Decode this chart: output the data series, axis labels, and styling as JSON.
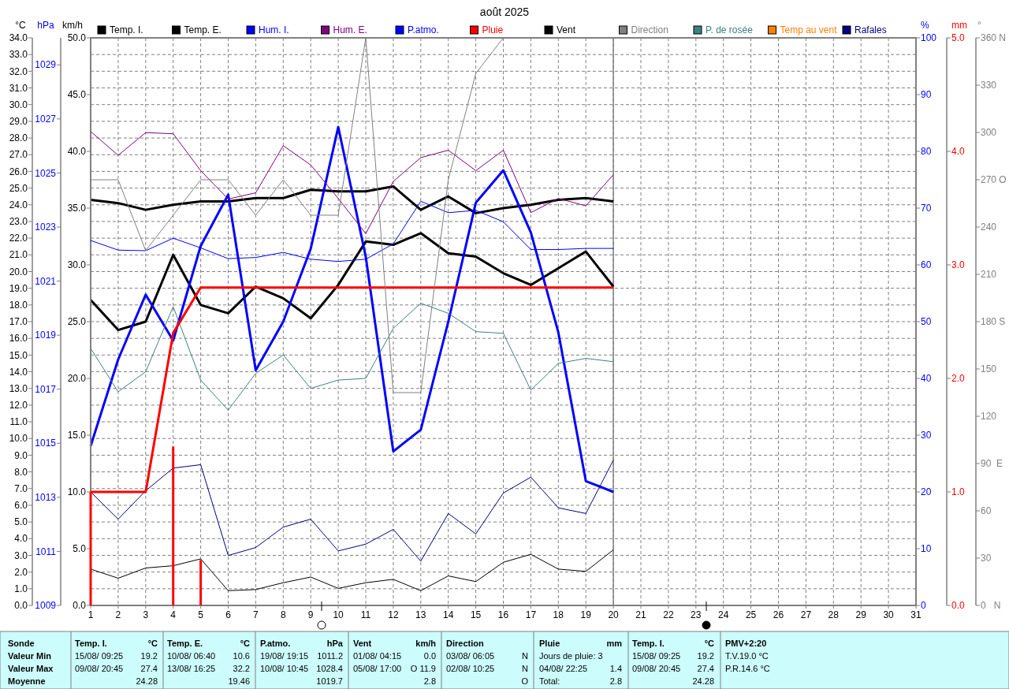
{
  "chart_data": [
    {
      "type": "line",
      "title": "août 2025",
      "ylabel": "°C",
      "y2label": "hPa",
      "y3label": "km/h",
      "x": [
        1,
        2,
        3,
        4,
        5,
        6,
        7,
        8,
        9,
        10,
        11,
        12,
        13,
        14,
        15,
        16,
        17,
        18,
        19,
        20
      ],
      "xlim": [
        1,
        31
      ],
      "xticks": [
        1,
        2,
        3,
        4,
        5,
        6,
        7,
        8,
        9,
        10,
        11,
        12,
        13,
        14,
        15,
        16,
        17,
        18,
        19,
        20,
        21,
        22,
        23,
        24,
        25,
        26,
        27,
        28,
        29,
        30,
        31
      ],
      "ylim": [
        0,
        34
      ],
      "yticks": [
        {
          "value": 0,
          "label": "0.0"
        },
        {
          "value": 1,
          "label": "1.0"
        },
        {
          "value": 2,
          "label": "2.0"
        },
        {
          "value": 3,
          "label": "3.0"
        },
        {
          "value": 4,
          "label": "4.0"
        },
        {
          "value": 5,
          "label": "5.0"
        },
        {
          "value": 6,
          "label": "6.0"
        },
        {
          "value": 7,
          "label": "7.0"
        },
        {
          "value": 8,
          "label": "8.0"
        },
        {
          "value": 9,
          "label": "9.0"
        },
        {
          "value": 10,
          "label": "10.0"
        },
        {
          "value": 11,
          "label": "11.0"
        },
        {
          "value": 12,
          "label": "12.0"
        },
        {
          "value": 13,
          "label": "13.0"
        },
        {
          "value": 14,
          "label": "14.0"
        },
        {
          "value": 15,
          "label": "15.0"
        },
        {
          "value": 16,
          "label": "16.0"
        },
        {
          "value": 17,
          "label": "17.0"
        },
        {
          "value": 18,
          "label": "18.0"
        },
        {
          "value": 19,
          "label": "19.0"
        },
        {
          "value": 20,
          "label": "20.0"
        },
        {
          "value": 21,
          "label": "21.0"
        },
        {
          "value": 22,
          "label": "22.0"
        },
        {
          "value": 23,
          "label": "23.0"
        },
        {
          "value": 24,
          "label": "24.0"
        },
        {
          "value": 25,
          "label": "25.0"
        },
        {
          "value": 26,
          "label": "26.0"
        },
        {
          "value": 27,
          "label": "27.0"
        },
        {
          "value": 28,
          "label": "28.0"
        },
        {
          "value": 29,
          "label": "29.0"
        },
        {
          "value": 30,
          "label": "30.0"
        },
        {
          "value": 31,
          "label": "31.0"
        },
        {
          "value": 32,
          "label": "32.0"
        },
        {
          "value": 33,
          "label": "33.0"
        },
        {
          "value": 34,
          "label": "34.0"
        }
      ],
      "y2lim": [
        1009,
        1030
      ],
      "y2ticks": [
        1009,
        1011,
        1013,
        1015,
        1017,
        1019,
        1021,
        1023,
        1025,
        1027,
        1029
      ],
      "y3lim": [
        0,
        50
      ],
      "y3ticks": [
        {
          "value": 0,
          "label": "0.0"
        },
        {
          "value": 5,
          "label": "5.0"
        },
        {
          "value": 10,
          "label": "10.0"
        },
        {
          "value": 15,
          "label": "15.0"
        },
        {
          "value": 20,
          "label": "20.0"
        },
        {
          "value": 25,
          "label": "25.0"
        },
        {
          "value": 30,
          "label": "30.0"
        },
        {
          "value": 35,
          "label": "35.0"
        },
        {
          "value": 40,
          "label": "40.0"
        },
        {
          "value": 45,
          "label": "45.0"
        },
        {
          "value": 50,
          "label": "50.0"
        }
      ],
      "grid": true,
      "legend": "top",
      "ref_lines": [
        {
          "axis": "x",
          "value": 20,
          "color": "#808080"
        }
      ],
      "series": [
        {
          "name": "Temp. I.",
          "color": "#000000",
          "values": [
            24.3,
            24.1,
            23.7,
            24.0,
            24.2,
            24.2,
            24.4,
            24.4,
            24.9,
            24.8,
            24.8,
            25.1,
            23.7,
            24.5,
            23.5,
            23.8,
            24.0,
            24.3,
            24.4,
            24.2
          ]
        },
        {
          "name": "Temp. E.",
          "color": "#000000",
          "values": [
            18.3,
            16.5,
            17.0,
            21.0,
            18.0,
            17.5,
            19.1,
            18.4,
            17.2,
            19.2,
            21.8,
            21.6,
            22.3,
            21.1,
            20.9,
            19.9,
            19.2,
            20.2,
            21.2,
            19.1
          ]
        },
        {
          "name": "P.atmo.",
          "color": "#0000ff",
          "axis": "y2",
          "values": [
            1014.9,
            1018.1,
            1020.5,
            1018.8,
            1022.3,
            1024.2,
            1017.7,
            1019.5,
            1022.2,
            1026.7,
            1021.9,
            1014.7,
            1015.5,
            1019.5,
            1023.9,
            1025.1,
            1022.8,
            1019.1,
            1013.6,
            1013.2
          ]
        },
        {
          "name": "Vent",
          "color": "#000000",
          "axis": "y3",
          "values": [
            3.2,
            2.4,
            3.3,
            3.5,
            4.1,
            1.3,
            1.4,
            2.0,
            2.5,
            1.5,
            2.0,
            2.3,
            1.3,
            2.6,
            2.1,
            3.8,
            4.5,
            3.2,
            3.0,
            4.9
          ]
        },
        {
          "name": "P. de rosée",
          "color": "#408080",
          "values": [
            15.4,
            12.8,
            14.0,
            17.9,
            13.5,
            11.7,
            13.9,
            15.0,
            13.0,
            13.5,
            13.6,
            16.6,
            18.1,
            17.5,
            16.4,
            16.3,
            12.9,
            14.5,
            14.8,
            14.6
          ]
        },
        {
          "name": "Temp au vent",
          "color": "#ff8000",
          "values": [
            null,
            null,
            null,
            null,
            null,
            null,
            null,
            null,
            null,
            null,
            null,
            null,
            null,
            null,
            null,
            null,
            null,
            null,
            null,
            null
          ]
        },
        {
          "name": "Rafales",
          "color": "#000080",
          "axis": "y3",
          "values": [
            10.0,
            7.6,
            10.1,
            12.1,
            12.4,
            4.4,
            5.1,
            6.9,
            7.6,
            4.8,
            5.4,
            6.7,
            3.9,
            8.1,
            6.3,
            9.9,
            11.3,
            8.6,
            8.1,
            12.8
          ]
        }
      ],
      "annotations": [
        "Sonde",
        "Valeur Min",
        "Valeur Max",
        "Moyenne",
        "Temp. I.",
        "°C",
        "15/08/ 09:25",
        "19.2",
        "09/08/ 20:45",
        "27.4",
        "24.28",
        "Temp. E.",
        "°C",
        "10/08/ 06:40",
        "10.6",
        "13/08/ 16:25",
        "32.2",
        "19.46",
        "P.atmo.",
        "hPa",
        "19/08/ 19:15",
        "1011.2",
        "10/08/ 10:45",
        "1028.4",
        "1019.7",
        "Vent",
        "km/h",
        "01/08/ 04:15",
        "0.0",
        "05/08/ 17:00",
        "O 11.9",
        "2.8",
        "Direction",
        "03/08/ 06:05",
        "N",
        "02/08/ 10:25",
        "N",
        "O",
        "Pluie",
        "mm",
        "Jours de pluie: 3",
        "04/08/ 22:25",
        "1.4",
        "Total:",
        "2.8",
        "Temp. I.",
        "°C",
        "15/08/ 09:25",
        "19.2",
        "09/08/ 20:45",
        "27.4",
        "24.28",
        "PMV+2:20",
        "T.V.19.0 °C",
        "P.R.14.6 °C"
      ]
    },
    {
      "type": "line",
      "ylabel": "%",
      "y2label": "mm",
      "y3label": "°",
      "tick_labels": "y",
      "legend": "top",
      "x": [
        1,
        2,
        3,
        4,
        5,
        6,
        7,
        8,
        9,
        10,
        11,
        12,
        13,
        14,
        15,
        16,
        17,
        18,
        19,
        20
      ],
      "xlim": [
        1,
        31
      ],
      "ylim": [
        0,
        100
      ],
      "yticks": [
        0,
        10,
        20,
        30,
        40,
        50,
        60,
        70,
        80,
        90,
        100
      ],
      "y2lim": [
        0,
        5
      ],
      "y2ticks": [
        {
          "value": 0,
          "label": "0.0"
        },
        {
          "value": 1,
          "label": "1.0"
        },
        {
          "value": 2,
          "label": "2.0"
        },
        {
          "value": 3,
          "label": "3.0"
        },
        {
          "value": 4,
          "label": "4.0"
        },
        {
          "value": 5,
          "label": "5.0"
        }
      ],
      "y3lim": [
        0,
        360
      ],
      "y3ticks": [
        {
          "value": 0,
          "label": "0   N"
        },
        30,
        60,
        {
          "value": 90,
          "label": "90  E"
        },
        120,
        150,
        {
          "value": 180,
          "label": "180 S"
        },
        210,
        240,
        {
          "value": 270,
          "label": "270 O"
        },
        300,
        330,
        {
          "value": 360,
          "label": "360 N"
        }
      ],
      "series": [
        {
          "name": "Hum. I.",
          "color": "#0000ff",
          "values": [
            64.3,
            62.6,
            62.5,
            64.7,
            63.0,
            61.1,
            61.3,
            62.2,
            61.0,
            60.6,
            61.0,
            63.7,
            71.2,
            69.2,
            69.6,
            67.6,
            62.7,
            62.7,
            62.9,
            62.9
          ]
        },
        {
          "name": "Hum. E.",
          "color": "#800080",
          "values": [
            83.5,
            79.3,
            83.3,
            83.1,
            76.6,
            71.6,
            72.7,
            81.0,
            77.6,
            71.7,
            65.5,
            74.7,
            78.9,
            80.2,
            76.6,
            80.2,
            69.2,
            71.7,
            70.4,
            75.9
          ]
        },
        {
          "name": "Pluie",
          "color": "#ff0000",
          "axis": "y2",
          "values": [
            1.0,
            1.0,
            1.0,
            2.4,
            2.8,
            2.8,
            2.8,
            2.8,
            2.8,
            2.8,
            2.8,
            2.8,
            2.8,
            2.8,
            2.8,
            2.8,
            2.8,
            2.8,
            2.8,
            2.8
          ]
        },
        {
          "name": "Direction",
          "color": "#808080",
          "axis": "y3",
          "values": [
            270,
            270,
            225,
            247.5,
            270,
            270,
            247.5,
            270,
            247.5,
            247.5,
            360,
            135,
            135,
            270,
            337.5,
            360,
            null,
            null,
            null,
            null
          ]
        },
        {
          "type": "bar",
          "color": "#ff0000",
          "axis": "y2",
          "values": [
            1.0,
            null,
            null,
            1.4,
            0.4,
            null,
            null,
            null,
            null,
            null,
            null,
            null,
            null,
            null,
            null,
            null,
            null,
            null,
            null,
            null
          ]
        }
      ]
    }
  ]
}
